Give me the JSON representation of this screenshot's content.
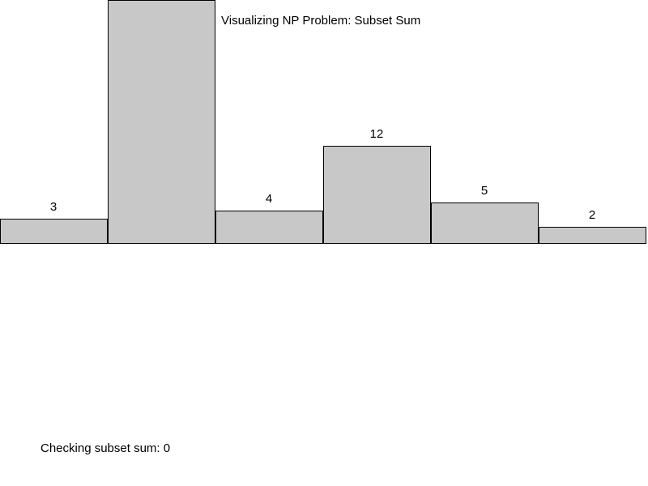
{
  "chart_data": {
    "type": "bar",
    "title": "Visualizing NP Problem: Subset Sum",
    "values": [
      3,
      30,
      4,
      12,
      5,
      2
    ],
    "value_labels": [
      "3",
      "",
      "4",
      "12",
      "5",
      "2"
    ],
    "bar_fill": "#c8c8c8",
    "bar_stroke": "#000000",
    "grid": false
  },
  "status": {
    "label": "Checking subset sum: 0"
  }
}
